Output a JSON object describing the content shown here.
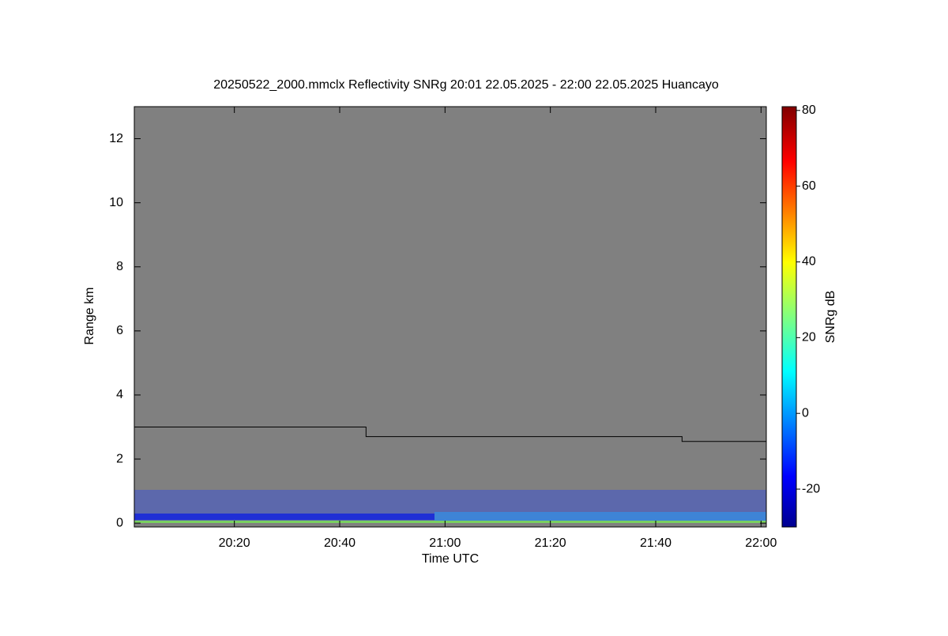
{
  "chart_data": {
    "type": "line",
    "title": "20250522_2000.mmclx Reflectivity SNRg   20:01 22.05.2025 - 22:00 22.05.2025 Huancayo",
    "x_label": "Time UTC",
    "y_label": "Range km",
    "xlim": [
      1201,
      1321
    ],
    "ylim": [
      -0.12,
      13
    ],
    "xticks": [
      {
        "value": 1220,
        "label": "20:20"
      },
      {
        "value": 1240,
        "label": "20:40"
      },
      {
        "value": 1260,
        "label": "21:00"
      },
      {
        "value": 1280,
        "label": "21:20"
      },
      {
        "value": 1300,
        "label": "21:40"
      },
      {
        "value": 1320,
        "label": "22:00"
      }
    ],
    "yticks": [
      0,
      2,
      4,
      6,
      8,
      10,
      12
    ],
    "series": [
      {
        "color": "#000000",
        "x": [
          1201,
          1245,
          1245,
          1305,
          1305,
          1321
        ],
        "values": [
          3.0,
          3.0,
          2.7,
          2.7,
          2.55,
          2.55
        ]
      }
    ],
    "colorbar": {
      "label": "SNRg dB",
      "lim": [
        -30,
        81
      ],
      "ticks": [
        -20,
        0,
        20,
        40,
        60,
        80
      ]
    }
  }
}
